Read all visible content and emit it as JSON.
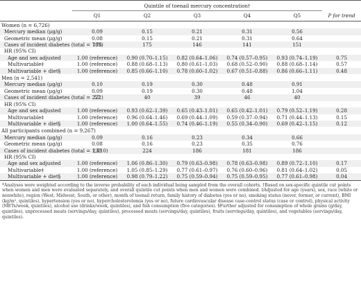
{
  "header": {
    "spanner": "Quintile of toenail mercury concentration†",
    "cols": [
      "Q1",
      "Q2",
      "Q3",
      "Q4",
      "Q5"
    ],
    "ptrend": "P for trend"
  },
  "groups": [
    {
      "title": "Women (n = 6,726)",
      "median_label": "Mercury median (μg/g)",
      "median": [
        "0.09",
        "0.15",
        "0.21",
        "0.31",
        "0.56"
      ],
      "geo_label": "Geometric mean (μg/g)",
      "geo": [
        "0.08",
        "0.15",
        "0.21",
        "0.31",
        "0.64"
      ],
      "cases_label": "Cases of incident diabetes (total = 788)",
      "cases": [
        "175",
        "175",
        "146",
        "141",
        "151"
      ],
      "hr_label": "HR (95% CI)",
      "rows": [
        {
          "label": "Age and sex adjusted",
          "v": [
            "1.00 (reference)",
            "0.90 (0.70–1.15)",
            "0.82 (0.64–1.06)",
            "0.74 (0.57–0.95)",
            "0.93 (0.74–1.19)"
          ],
          "p": "0.75"
        },
        {
          "label": "Multivariable‡",
          "v": [
            "1.00 (reference)",
            "0.88 (0.68–1.13)",
            "0.80 (0.61–1.03)",
            "0.68 (0.52–0.90)",
            "0.88 (0.68–1.14)"
          ],
          "p": "0.57"
        },
        {
          "label": "Multivariable + diet§",
          "v": [
            "1.00 (reference)",
            "0.85 (0.66–1.10)",
            "0.78 (0.60–1.02)",
            "0.67 (0.51–0.88)",
            "0.86 (0.66–1.11)"
          ],
          "p": "0.48"
        }
      ]
    },
    {
      "title": "Men (n = 2,541)",
      "median_label": "Mercury median (μg/g)",
      "median": [
        "0.10",
        "0.19",
        "0.30",
        "0.48",
        "0.91"
      ],
      "geo_label": "Geometric mean (μg/g)",
      "geo": [
        "0.09",
        "0.19",
        "0.30",
        "0.48",
        "1.04"
      ],
      "cases_label": "Cases of incident diabetes (total = 222)",
      "cases": [
        "57",
        "40",
        "39",
        "46",
        "40"
      ],
      "hr_label": "HR (95% CI)",
      "rows": [
        {
          "label": "Age and sex adjusted",
          "v": [
            "1.00 (reference)",
            "0.93 (0.62–1.39)",
            "0.65 (0.43–1.01)",
            "0.65 (0.42–1.01)",
            "0.79 (0.52–1.19)"
          ],
          "p": "0.28"
        },
        {
          "label": "Multivariable‡",
          "v": [
            "1.00 (reference)",
            "0.96 (0.64–1.46)",
            "0.69 (0.44–1.09)",
            "0.59 (0.37–0.94)",
            "0.71 (0.44–1.13)"
          ],
          "p": "0.15"
        },
        {
          "label": "Multivariable + diet§",
          "v": [
            "1.00 (reference)",
            "1.00 (0.64–1.55)",
            "0.74 (0.46–1.19)",
            "0.55 (0.34–0.90)",
            "0.69 (0.42–1.15)"
          ],
          "p": "0.12"
        }
      ]
    },
    {
      "title": "All participants combined (n = 9,267)",
      "median_label": "Mercury median (μg/g)",
      "median": [
        "0.09",
        "0.16",
        "0.23",
        "0.34",
        "0.66"
      ],
      "geo_label": "Geometric mean (μg/g)",
      "geo": [
        "0.08",
        "0.16",
        "0.23",
        "0.35",
        "0.76"
      ],
      "cases_label": "Cases of incident diabetes (total = 1,010)",
      "cases": [
        "233",
        "224",
        "186",
        "181",
        "186"
      ],
      "hr_label": "HR (95% CI)",
      "rows": [
        {
          "label": "Age and sex adjusted",
          "v": [
            "1.00 (reference)",
            "1.06 (0.86–1.30)",
            "0.79 (0.63–0.98)",
            "0.78 (0.63–0.98)",
            "0.89 (0.72–1.10)"
          ],
          "p": "0.17"
        },
        {
          "label": "Multivariable‡",
          "v": [
            "1.00 (reference)",
            "1.05 (0.85–1.29)",
            "0.77 (0.61–0.97)",
            "0.76 (0.60–0.96)",
            "0.81 (0.64–1.02)"
          ],
          "p": "0.05"
        },
        {
          "label": "Multivariable + diet§",
          "v": [
            "1.00 (reference)",
            "0.98 (0.79–1.22)",
            "0.75 (0.59–0.94)",
            "0.75 (0.59–0.95)",
            "0.77 (0.61–0.98)"
          ],
          "p": "0.04"
        }
      ]
    }
  ],
  "footnote": "*Analyses were weighted according to the inverse probability of each individual being sampled from the overall cohorts. †Based on sex-specific quintile cut points when women and men were evaluated separately, and overall quintile cut points when men and women were combined. ‡Adjusted for age (years), sex, race (white or nonwhite), region (West, Midwest, South, or other), month of toenail return, family history of diabetes (yes or no), smoking status (never, former, or current), BMI (kg/m², quintiles), hypertension (yes or no), hypercholesterolemia (yes or no), future cardiovascular disease case-control status (case or control), physical activity (METs/week, quintiles), alcohol use (drinks/week, quintiles), and fish consumption (five categories). §Further adjusted for consumption of whole grains (g/day, quintiles), unprocessed meats (servings/day, quintiles), processed meats (servings/day, quintiles), fruits (servings/day, quintiles), and vegetables (servings/day, quintiles)."
}
